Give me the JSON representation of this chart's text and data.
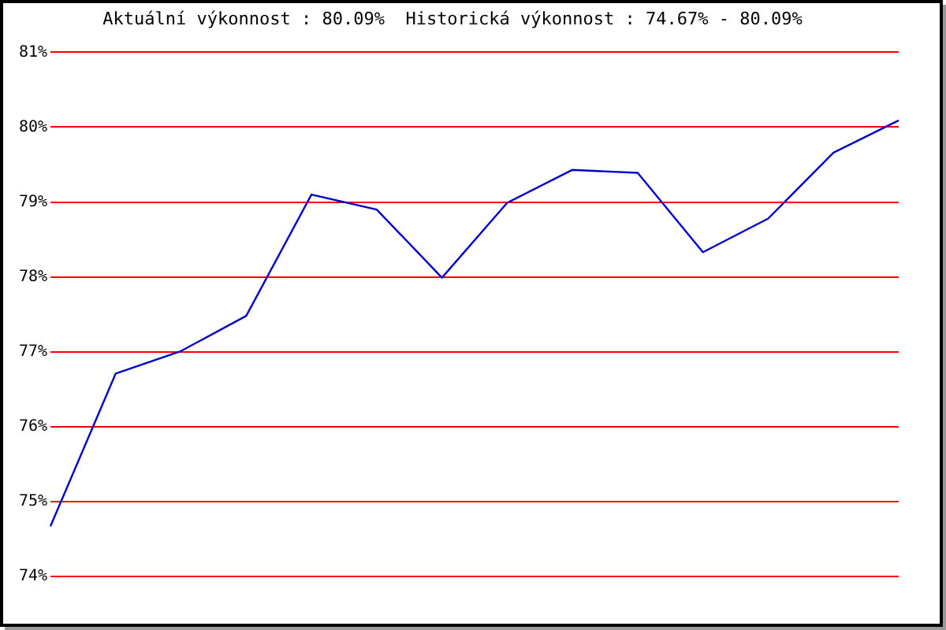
{
  "chart_data": {
    "type": "line",
    "title": "Aktuální výkonnost : 80.09%  Historická výkonnost : 74.67% - 80.09%",
    "categories": [
      null,
      null,
      null,
      null,
      null,
      null,
      null,
      null,
      null,
      null,
      null,
      null,
      null,
      null
    ],
    "series": [
      {
        "color": "#0000cc",
        "values": [
          74.67,
          76.71,
          77.01,
          77.48,
          79.1,
          78.9,
          77.99,
          78.99,
          79.43,
          79.39,
          78.33,
          78.78,
          79.66,
          80.09
        ]
      }
    ],
    "ylim": [
      74,
      81
    ],
    "yticks": [
      {
        "value": 74,
        "label": "74%"
      },
      {
        "value": 75,
        "label": "75%"
      },
      {
        "value": 76,
        "label": "76%"
      },
      {
        "value": 77,
        "label": "77%"
      },
      {
        "value": 78,
        "label": "78%"
      },
      {
        "value": 79,
        "label": "79%"
      },
      {
        "value": 80,
        "label": "80%"
      },
      {
        "value": 81,
        "label": "81%"
      }
    ],
    "grid": "y",
    "legend": false,
    "marker": "none",
    "line_style": "solid",
    "tick_labels": "y"
  }
}
